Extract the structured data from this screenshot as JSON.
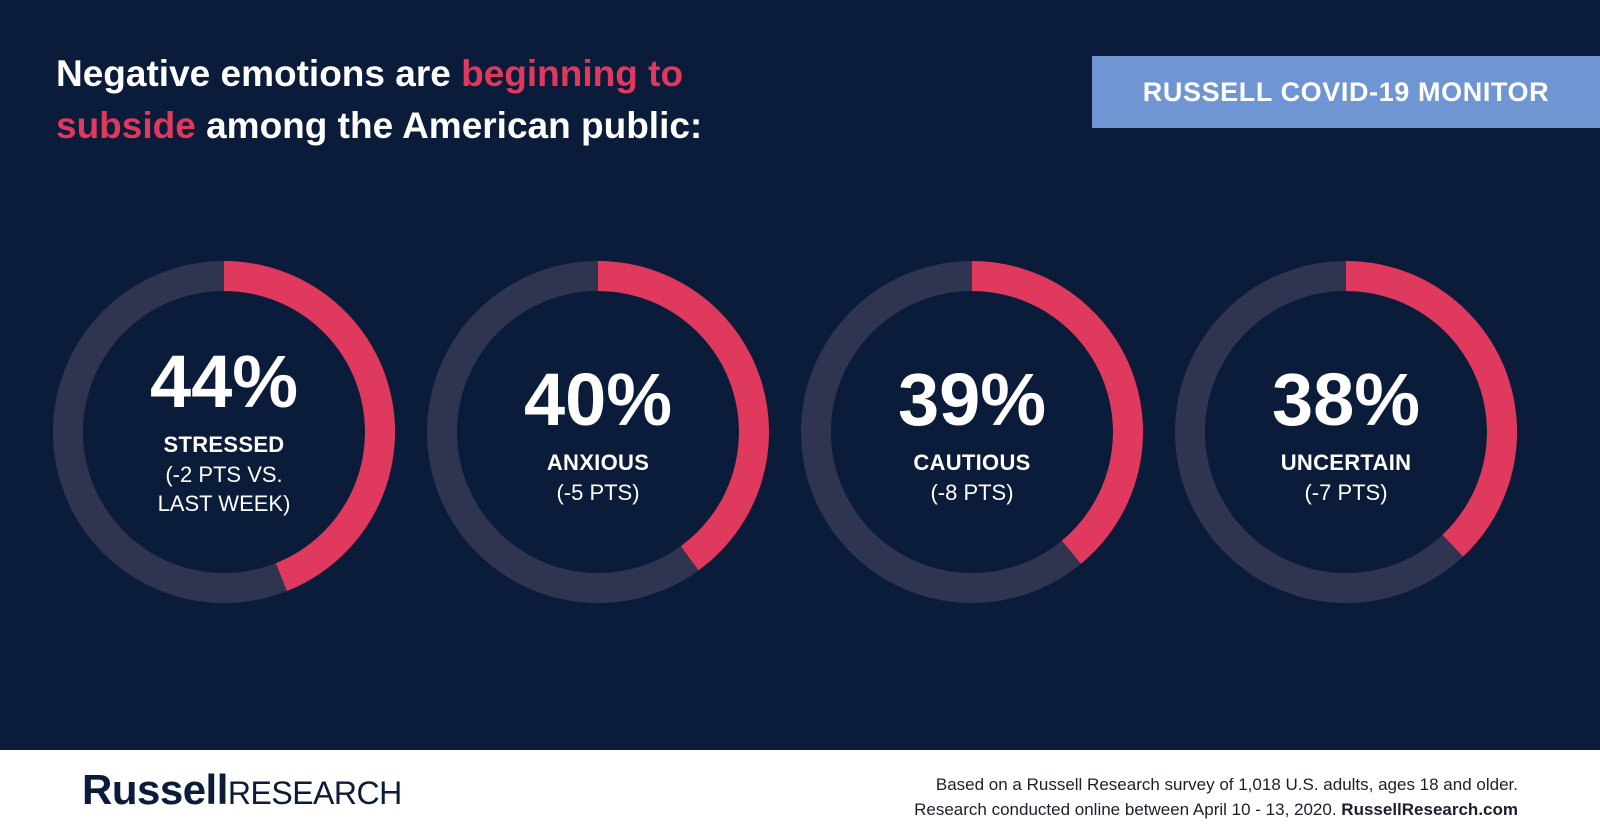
{
  "header": {
    "headline_part1": "Negative emotions are ",
    "headline_accent1": "beginning to",
    "headline_accent2": "subside",
    "headline_part2": " among the American public:",
    "badge": "RUSSELL COVID-19 MONITOR"
  },
  "colors": {
    "background": "#0b1b3a",
    "accent": "#e0395e",
    "track": "#2f3550",
    "badge": "#6f95d2"
  },
  "chart_data": {
    "type": "donut",
    "title": "",
    "items": [
      {
        "value": 44,
        "value_label": "44%",
        "label": "STRESSED",
        "change": "(-2 PTS VS.\nLAST WEEK)"
      },
      {
        "value": 40,
        "value_label": "40%",
        "label": "ANXIOUS",
        "change": "(-5 PTS)"
      },
      {
        "value": 39,
        "value_label": "39%",
        "label": "CAUTIOUS",
        "change": "(-8 PTS)"
      },
      {
        "value": 38,
        "value_label": "38%",
        "label": "UNCERTAIN",
        "change": "(-7 PTS)"
      }
    ]
  },
  "footer": {
    "logo_bold": "Russell",
    "logo_light": "RESEARCH",
    "note_line1": "Based on a Russell Research survey of 1,018 U.S. adults, ages 18 and older.",
    "note_line2": "Research conducted online between  April 10 - 13, 2020. ",
    "note_site": "RussellResearch.com"
  }
}
